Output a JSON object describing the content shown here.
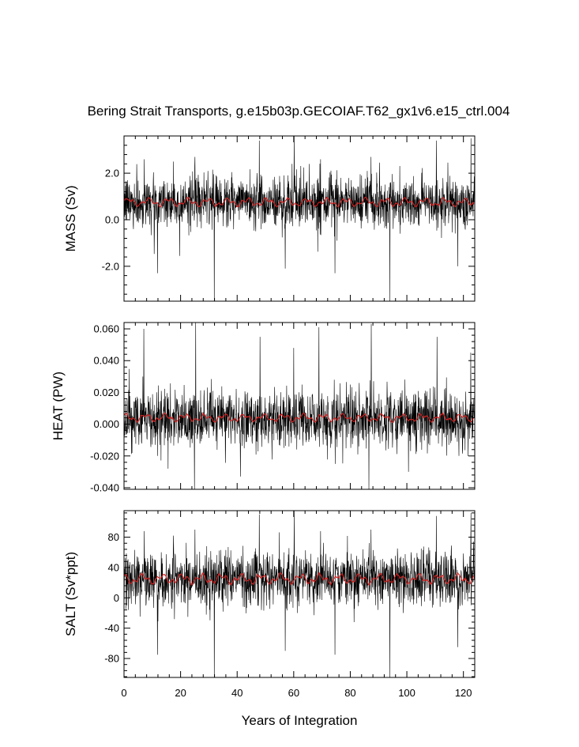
{
  "chart_data": {
    "type": "line",
    "title": "Bering Strait Transports, g.e15b03p.GECOIAF.T62_gx1v6.e15_ctrl.004",
    "xlabel": "Years of Integration",
    "xlim": [
      0,
      124
    ],
    "x_ticks": [
      0,
      20,
      40,
      60,
      80,
      100,
      120
    ],
    "x_tick_labels": [
      "0",
      "20",
      "40",
      "60",
      "80",
      "100",
      "120"
    ],
    "series_colors": {
      "monthly": "#000000",
      "annual": "#d62020"
    },
    "panels": [
      {
        "ylabel": "MASS (Sv)",
        "ylim": [
          -3.5,
          3.6
        ],
        "yticks": [
          -2.0,
          0.0,
          2.0
        ],
        "ytick_labels": [
          "-2.0",
          "0.0",
          "2.0"
        ],
        "monthly": {
          "mean": 0.75,
          "std": 0.55,
          "min_clip": -3.5,
          "max_clip": 3.6,
          "spikes": [
            [
              7.2,
              2.6
            ],
            [
              11.8,
              -2.3
            ],
            [
              17.5,
              2.5
            ],
            [
              25.1,
              2.7
            ],
            [
              31.9,
              -3.5
            ],
            [
              47.8,
              3.4
            ],
            [
              57.0,
              -2.1
            ],
            [
              60.2,
              3.6
            ],
            [
              69.5,
              2.6
            ],
            [
              74.6,
              -2.3
            ],
            [
              87.3,
              2.7
            ],
            [
              94.0,
              -3.5
            ],
            [
              110.4,
              3.4
            ],
            [
              118.0,
              -2.0
            ],
            [
              122.7,
              3.5
            ]
          ]
        },
        "annual_mean": {
          "base": 0.75,
          "amplitude": 0.22
        }
      },
      {
        "ylabel": "HEAT (PW)",
        "ylim": [
          -0.041,
          0.064
        ],
        "yticks": [
          -0.04,
          -0.02,
          0.0,
          0.02,
          0.04,
          0.06
        ],
        "ytick_labels": [
          "-0.040",
          "-0.020",
          "0.000",
          "0.020",
          "0.040",
          "0.060"
        ],
        "monthly": {
          "mean": 0.003,
          "std": 0.009,
          "min_clip": -0.041,
          "max_clip": 0.064,
          "spikes": [
            [
              7.0,
              0.06
            ],
            [
              11.9,
              -0.02
            ],
            [
              15.6,
              -0.028
            ],
            [
              24.9,
              -0.041
            ],
            [
              25.3,
              0.064
            ],
            [
              41.2,
              -0.033
            ],
            [
              48.1,
              0.055
            ],
            [
              60.0,
              0.048
            ],
            [
              68.9,
              0.061
            ],
            [
              74.7,
              -0.025
            ],
            [
              86.6,
              -0.041
            ],
            [
              87.4,
              0.063
            ],
            [
              100.6,
              -0.03
            ],
            [
              110.7,
              0.055
            ],
            [
              122.6,
              0.045
            ]
          ]
        },
        "annual_mean": {
          "base": 0.004,
          "amplitude": 0.003
        }
      },
      {
        "ylabel": "SALT (Sv*ppt)",
        "ylim": [
          -105,
          115
        ],
        "yticks": [
          -80,
          -40,
          0,
          40,
          80
        ],
        "ytick_labels": [
          "-80",
          "-40",
          "0",
          "40",
          "80"
        ],
        "monthly": {
          "mean": 25,
          "std": 18,
          "min_clip": -105,
          "max_clip": 115,
          "spikes": [
            [
              7.2,
              88
            ],
            [
              11.8,
              -75
            ],
            [
              17.5,
              82
            ],
            [
              25.1,
              90
            ],
            [
              31.9,
              -105
            ],
            [
              47.8,
              110
            ],
            [
              57.0,
              -70
            ],
            [
              60.2,
              115
            ],
            [
              69.5,
              88
            ],
            [
              74.6,
              -75
            ],
            [
              87.3,
              90
            ],
            [
              94.0,
              -105
            ],
            [
              110.4,
              108
            ],
            [
              118.0,
              -65
            ],
            [
              122.7,
              112
            ]
          ]
        },
        "annual_mean": {
          "base": 25,
          "amplitude": 8
        }
      }
    ]
  }
}
